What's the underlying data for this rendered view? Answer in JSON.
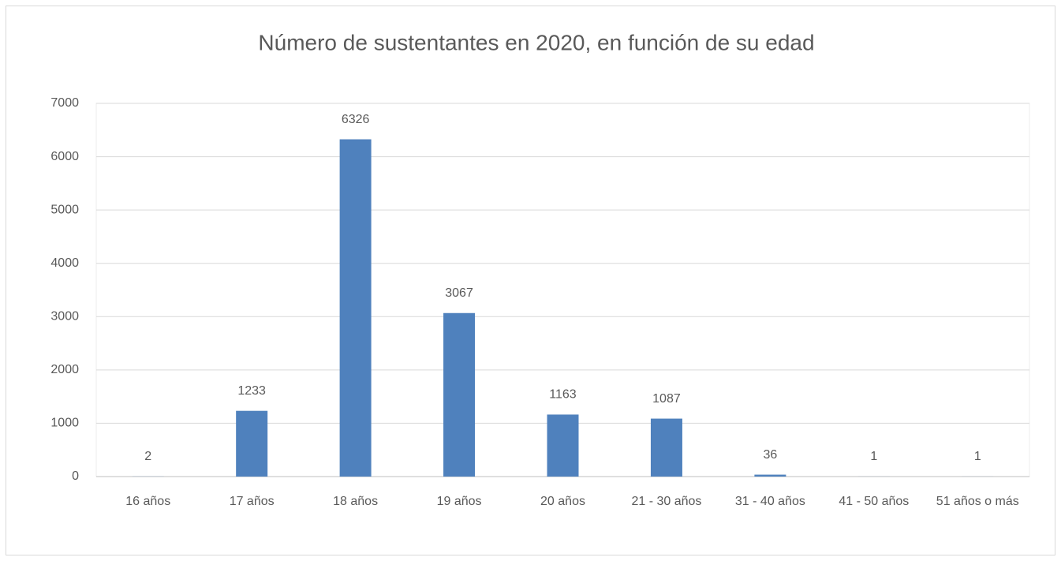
{
  "chart_data": {
    "type": "bar",
    "title": "Número de sustentantes en 2020, en función de su edad",
    "categories": [
      "16 años",
      "17 años",
      "18 años",
      "19 años",
      "20 años",
      "21 - 30 años",
      "31 - 40 años",
      "41 - 50 años",
      "51 años o más"
    ],
    "values": [
      2,
      1233,
      6326,
      3067,
      1163,
      1087,
      36,
      1,
      1
    ],
    "color": "#4f81bd",
    "ylim": [
      0,
      7000
    ],
    "yticks": [
      0,
      1000,
      2000,
      3000,
      4000,
      5000,
      6000,
      7000
    ],
    "grid": true
  }
}
